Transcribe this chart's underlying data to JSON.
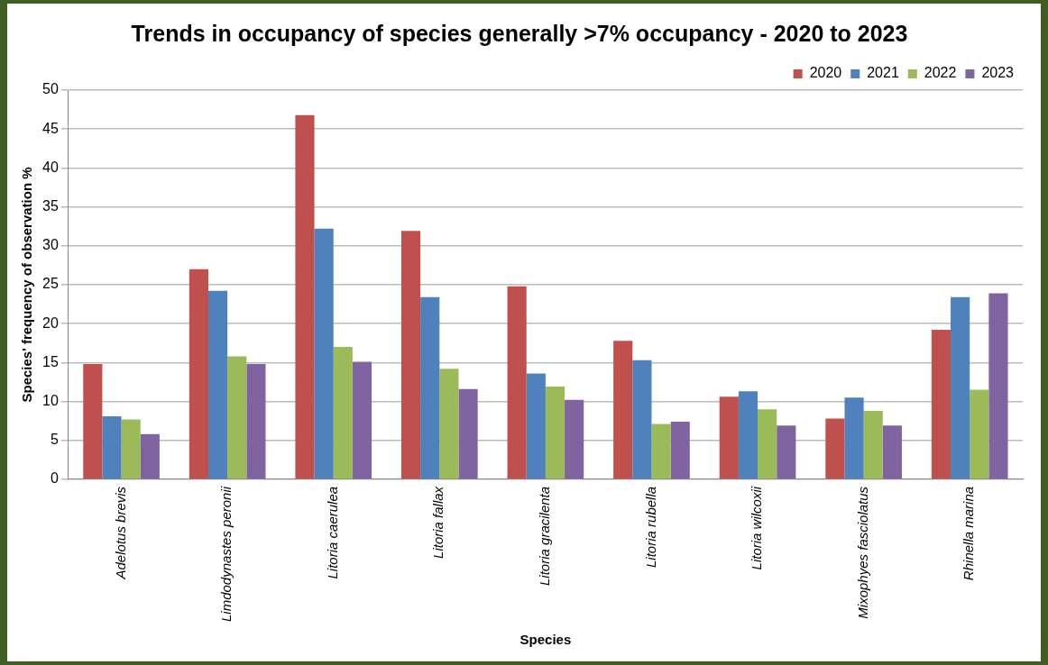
{
  "chart_data": {
    "type": "bar",
    "title": "Trends in occupancy of species generally >7% occupancy - 2020 to 2023",
    "xlabel": "Species",
    "ylabel": "Species' frequency of observation %",
    "categories": [
      "Adelotus brevis",
      "Limdodynastes peronii",
      "Litoria caerulea",
      "Litoria fallax",
      "Litoria gracilenta",
      "Litoria rubella",
      "Litoria wilcoxii",
      "Mixophyes fasciolatus",
      "Rhinella marina"
    ],
    "series": [
      {
        "name": "2020",
        "color": "#c0504d",
        "values": [
          14.8,
          27,
          46.8,
          31.9,
          24.8,
          17.8,
          10.6,
          7.8,
          19.2
        ]
      },
      {
        "name": "2021",
        "color": "#4f81bd",
        "values": [
          8.1,
          24.2,
          32.2,
          23.4,
          13.6,
          15.3,
          11.3,
          10.5,
          23.4
        ]
      },
      {
        "name": "2022",
        "color": "#9bbb59",
        "values": [
          7.7,
          15.8,
          17,
          14.2,
          11.9,
          7.1,
          9,
          8.8,
          11.5
        ]
      },
      {
        "name": "2023",
        "color": "#8064a2",
        "values": [
          5.8,
          14.8,
          15.1,
          11.6,
          10.2,
          7.4,
          6.9,
          6.9,
          23.9
        ]
      }
    ],
    "ylim": [
      0,
      50
    ],
    "yticks": [
      0,
      5,
      10,
      15,
      20,
      25,
      30,
      35,
      40,
      45,
      50
    ],
    "grid": "y",
    "legend": "top right"
  }
}
